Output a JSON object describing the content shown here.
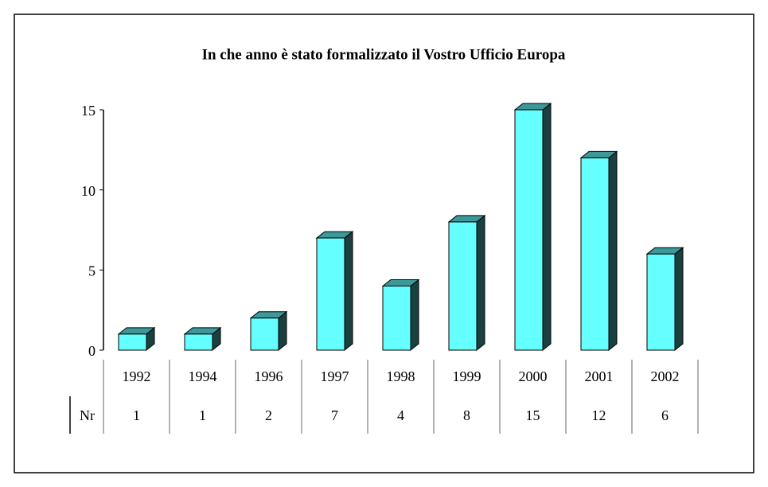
{
  "chart_data": {
    "type": "bar3d",
    "title": "In che anno è stato formalizzato il Vostro Ufficio Europa",
    "categories": [
      "1992",
      "1994",
      "1996",
      "1997",
      "1998",
      "1999",
      "2000",
      "2001",
      "2002"
    ],
    "row_label": "Nr",
    "values": [
      1,
      1,
      2,
      7,
      4,
      8,
      15,
      12,
      6
    ],
    "color": "#66ffff",
    "ylim": [
      0,
      15
    ],
    "yticks": [
      0,
      5,
      10,
      15
    ],
    "grid": false
  }
}
